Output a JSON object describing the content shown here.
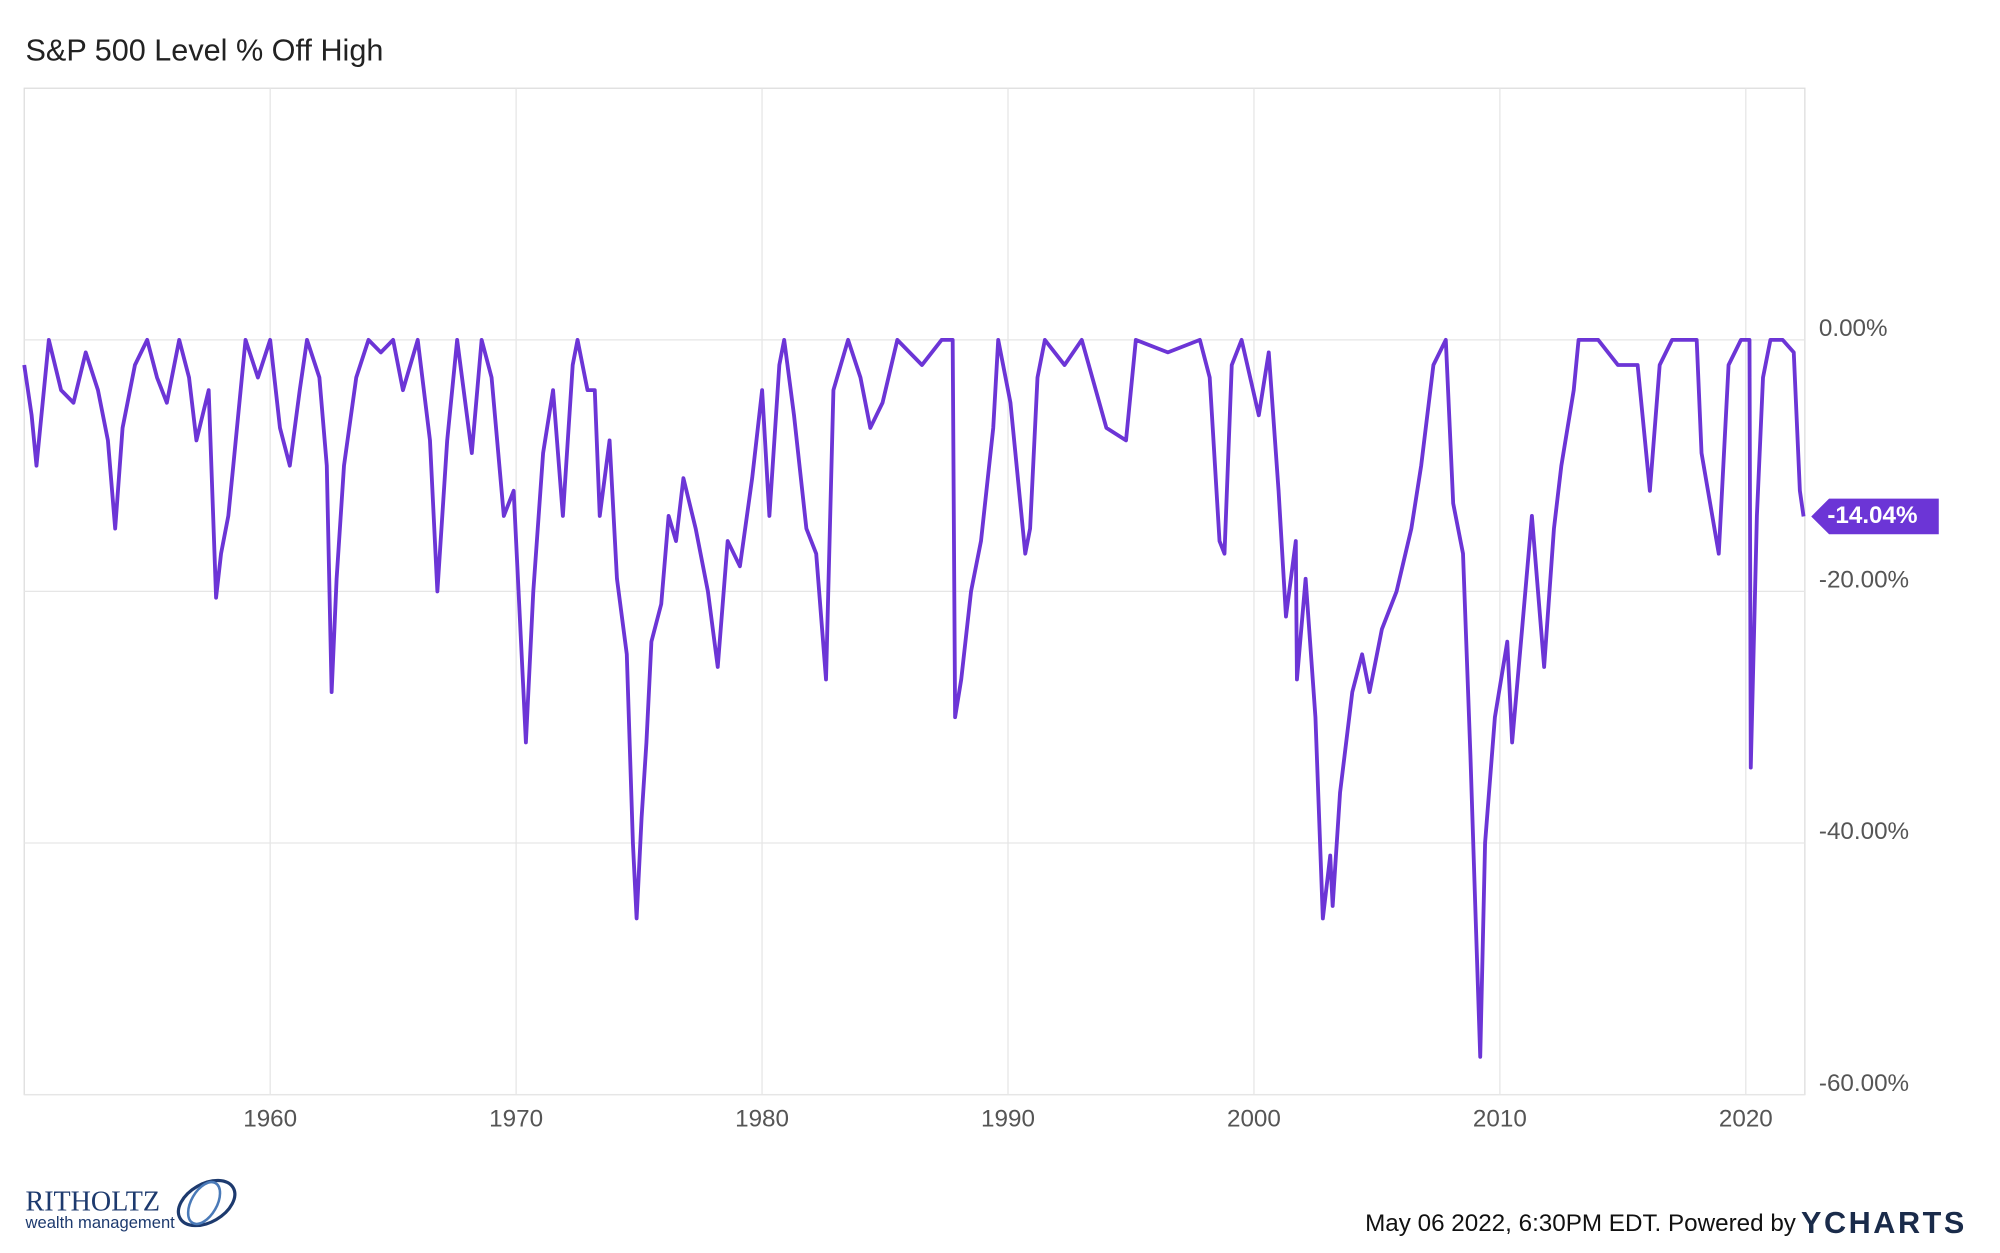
{
  "chart_data": {
    "type": "line",
    "title": "S&P 500 Level % Off High",
    "x": [
      1950,
      1950.3,
      1950.5,
      1951,
      1951.5,
      1952,
      1952.5,
      1953,
      1953.4,
      1953.7,
      1954,
      1954.5,
      1955,
      1955.4,
      1955.8,
      1956.3,
      1956.7,
      1957,
      1957.5,
      1957.8,
      1958,
      1958.3,
      1958.5,
      1959,
      1959.5,
      1960,
      1960.4,
      1960.8,
      1961.2,
      1961.5,
      1962,
      1962.3,
      1962.5,
      1962.7,
      1963,
      1963.5,
      1964,
      1964.5,
      1965,
      1965.4,
      1966,
      1966.5,
      1966.8,
      1967.2,
      1967.6,
      1968.2,
      1968.6,
      1969,
      1969.5,
      1969.9,
      1970.3,
      1970.4,
      1970.7,
      1971.1,
      1971.5,
      1971.9,
      1972.3,
      1972.5,
      1972.9,
      1973.2,
      1973.4,
      1973.8,
      1974.1,
      1974.5,
      1974.75,
      1974.9,
      1975.1,
      1975.3,
      1975.5,
      1975.9,
      1976.2,
      1976.5,
      1976.8,
      1977.3,
      1977.8,
      1978.2,
      1978.6,
      1979.1,
      1979.6,
      1980,
      1980.3,
      1980.7,
      1980.9,
      1981.3,
      1981.8,
      1982.2,
      1982.6,
      1982.9,
      1983.5,
      1984,
      1984.4,
      1984.9,
      1985.5,
      1986.5,
      1987.3,
      1987.75,
      1987.85,
      1988.1,
      1988.5,
      1988.9,
      1989.4,
      1989.6,
      1990.1,
      1990.7,
      1990.9,
      1991.2,
      1991.5,
      1992.3,
      1993,
      1994,
      1994.8,
      1995.2,
      1996.5,
      1997.8,
      1998.2,
      1998.6,
      1998.8,
      1999.1,
      1999.5,
      2000.2,
      2000.6,
      2001,
      2001.3,
      2001.7,
      2001.75,
      2002.1,
      2002.5,
      2002.8,
      2003.1,
      2003.2,
      2003.5,
      2004,
      2004.4,
      2004.7,
      2005.2,
      2005.8,
      2006.4,
      2006.8,
      2007.3,
      2007.8,
      2008.1,
      2008.5,
      2008.8,
      2009,
      2009.2,
      2009.4,
      2009.8,
      2010.3,
      2010.5,
      2010.9,
      2011.3,
      2011.8,
      2012.2,
      2012.5,
      2013,
      2013.2,
      2014,
      2014.8,
      2015.6,
      2016.1,
      2016.5,
      2017,
      2018,
      2018.2,
      2018.9,
      2019.3,
      2019.8,
      2020.15,
      2020.2,
      2020.45,
      2020.7,
      2021,
      2021.5,
      2021.95,
      2022.2,
      2022.35
    ],
    "series": [
      {
        "name": "S&P 500 Level % Off High",
        "color": "#6c35d6",
        "values": [
          -2,
          -6,
          -10,
          0,
          -4,
          -5,
          -1,
          -4,
          -8,
          -15,
          -7,
          -2,
          0,
          -3,
          -5,
          0,
          -3,
          -8,
          -4,
          -20.5,
          -17,
          -14,
          -10,
          0,
          -3,
          0,
          -7,
          -10,
          -4,
          0,
          -3,
          -10,
          -28,
          -19,
          -10,
          -3,
          0,
          -1,
          0,
          -4,
          0,
          -8,
          -20,
          -8,
          0,
          -9,
          0,
          -3,
          -14,
          -12,
          -28,
          -32,
          -20,
          -9,
          -4,
          -14,
          -2,
          0,
          -4,
          -4,
          -14,
          -8,
          -19,
          -25,
          -40,
          -46,
          -38,
          -32,
          -24,
          -21,
          -14,
          -16,
          -11,
          -15,
          -20,
          -26,
          -16,
          -18,
          -11,
          -4,
          -14,
          -2,
          0,
          -6,
          -15,
          -17,
          -27,
          -4,
          0,
          -3,
          -7,
          -5,
          0,
          -2,
          0,
          0,
          -30,
          -27,
          -20,
          -16,
          -7,
          0,
          -5,
          -17,
          -15,
          -3,
          0,
          -2,
          0,
          -7,
          -8,
          0,
          -1,
          0,
          -3,
          -16,
          -17,
          -2,
          0,
          -6,
          -1,
          -12,
          -22,
          -16,
          -27,
          -19,
          -30,
          -46,
          -41,
          -45,
          -36,
          -28,
          -25,
          -28,
          -23,
          -20,
          -15,
          -10,
          -2,
          0,
          -13,
          -17,
          -33,
          -45,
          -57,
          -40,
          -30,
          -24,
          -32,
          -23,
          -14,
          -26,
          -15,
          -10,
          -4,
          0,
          0,
          -2,
          -2,
          -12,
          -2,
          0,
          0,
          -9,
          -17,
          -2,
          0,
          0,
          -34,
          -14,
          -3,
          0,
          0,
          -1,
          -12,
          -14.04
        ]
      }
    ],
    "annotation": {
      "value": -14.04,
      "label": "-14.04%"
    },
    "xlim": [
      1950,
      2022.4
    ],
    "xticks": [
      1960,
      1970,
      1980,
      1990,
      2000,
      2010,
      2020
    ],
    "ylim": [
      -60,
      20
    ],
    "yticks": [
      {
        "value": 0,
        "label": "0.00%"
      },
      {
        "value": -20,
        "label": "-20.00%"
      },
      {
        "value": -40,
        "label": "-40.00%"
      },
      {
        "value": -60,
        "label": "-60.00%"
      }
    ],
    "grid": true
  },
  "footer": {
    "logo_name": "RITHOLTZ",
    "logo_sub": "wealth management",
    "timestamp": "May 06 2022, 6:30PM EDT. Powered by",
    "brand": "YCHARTS"
  }
}
